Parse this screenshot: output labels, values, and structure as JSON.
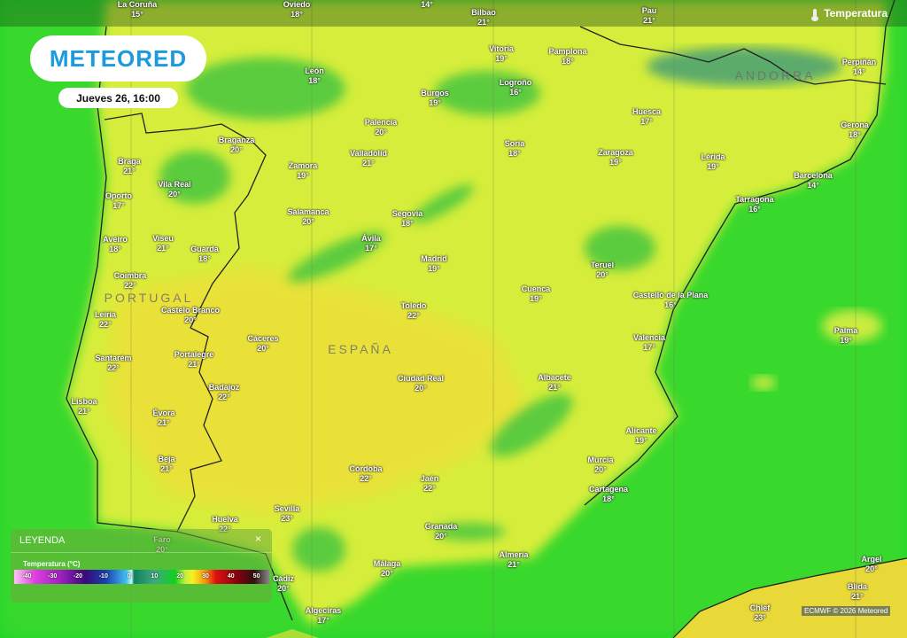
{
  "header": {
    "layer_label": "Temperatura",
    "layer_icon": "thermometer-icon"
  },
  "logo": {
    "text": "METEORED"
  },
  "date": "Jueves 26, 16:00",
  "countries": [
    "PORTUGAL",
    "ESPAÑA",
    "ANDORRA"
  ],
  "cities": [
    {
      "name": "La Coruña",
      "temp": "15°"
    },
    {
      "name": "Oviedo",
      "temp": "18°"
    },
    {
      "name": "",
      "temp": "14°"
    },
    {
      "name": "Bilbao",
      "temp": "21°"
    },
    {
      "name": "Pau",
      "temp": "21°"
    },
    {
      "name": "Vitoria",
      "temp": "19°"
    },
    {
      "name": "Pamplona",
      "temp": "18°"
    },
    {
      "name": "León",
      "temp": "18°"
    },
    {
      "name": "Burgos",
      "temp": "19°"
    },
    {
      "name": "Logroño",
      "temp": "16°"
    },
    {
      "name": "Huesca",
      "temp": "17°"
    },
    {
      "name": "Perpiñán",
      "temp": "14°"
    },
    {
      "name": "Gerona",
      "temp": "18°"
    },
    {
      "name": "Palencia",
      "temp": "20°"
    },
    {
      "name": "Braganza",
      "temp": "20°"
    },
    {
      "name": "Soria",
      "temp": "18°"
    },
    {
      "name": "Zaragoza",
      "temp": "19°"
    },
    {
      "name": "Lérida",
      "temp": "19°"
    },
    {
      "name": "Valladolid",
      "temp": "21°"
    },
    {
      "name": "Braga",
      "temp": "21°"
    },
    {
      "name": "Zamora",
      "temp": "19°"
    },
    {
      "name": "Barcelona",
      "temp": "14°"
    },
    {
      "name": "Vila Real",
      "temp": "20°"
    },
    {
      "name": "Oporto",
      "temp": "17°"
    },
    {
      "name": "Tarragona",
      "temp": "16°"
    },
    {
      "name": "Salamanca",
      "temp": "20°"
    },
    {
      "name": "Segovia",
      "temp": "18°"
    },
    {
      "name": "Aveiro",
      "temp": "18°"
    },
    {
      "name": "Viseu",
      "temp": "21°"
    },
    {
      "name": "Ávila",
      "temp": "17°"
    },
    {
      "name": "Guarda",
      "temp": "18°"
    },
    {
      "name": "Madrid",
      "temp": "19°"
    },
    {
      "name": "Teruel",
      "temp": "20°"
    },
    {
      "name": "Coimbra",
      "temp": "22°"
    },
    {
      "name": "Cuenca",
      "temp": "19°"
    },
    {
      "name": "Castelló de la Plana",
      "temp": "16°"
    },
    {
      "name": "Toledo",
      "temp": "22°"
    },
    {
      "name": "Castelo Branco",
      "temp": "20°"
    },
    {
      "name": "Leiria",
      "temp": "22°"
    },
    {
      "name": "Palma",
      "temp": "19°"
    },
    {
      "name": "Valencia",
      "temp": "17°"
    },
    {
      "name": "Cáceres",
      "temp": "20°"
    },
    {
      "name": "Portalegre",
      "temp": "21°"
    },
    {
      "name": "Santarém",
      "temp": "22°"
    },
    {
      "name": "Ciudad Real",
      "temp": "20°"
    },
    {
      "name": "Albacete",
      "temp": "21°"
    },
    {
      "name": "Badajoz",
      "temp": "22°"
    },
    {
      "name": "Lisboa",
      "temp": "21°"
    },
    {
      "name": "Évora",
      "temp": "21°"
    },
    {
      "name": "Alicante",
      "temp": "19°"
    },
    {
      "name": "Beja",
      "temp": "21°"
    },
    {
      "name": "Murcia",
      "temp": "20°"
    },
    {
      "name": "Córdoba",
      "temp": "22°"
    },
    {
      "name": "Jaén",
      "temp": "22°"
    },
    {
      "name": "Cartagena",
      "temp": "18°"
    },
    {
      "name": "Sevilla",
      "temp": "23°"
    },
    {
      "name": "Huelva",
      "temp": "22°"
    },
    {
      "name": "Granada",
      "temp": "20°"
    },
    {
      "name": "Faro",
      "temp": "20°"
    },
    {
      "name": "Almería",
      "temp": "21°"
    },
    {
      "name": "Málaga",
      "temp": "20°"
    },
    {
      "name": "Cádiz",
      "temp": "20°"
    },
    {
      "name": "Algeciras",
      "temp": "17°"
    },
    {
      "name": "Argel",
      "temp": "20°"
    },
    {
      "name": "Blida",
      "temp": "21°"
    },
    {
      "name": "Chlef",
      "temp": "23°"
    }
  ],
  "legend": {
    "title": "LEYENDA",
    "close": "×",
    "subtitle": "Temperatura (°C)",
    "ticks": [
      "-40",
      "-30",
      "-20",
      "-10",
      "0",
      "10",
      "20",
      "30",
      "40",
      "50"
    ],
    "colors": {
      "sea": "#22d42a",
      "land_warm": "#e8ec38",
      "land_cool": "#a8e840",
      "mountain": "#3a9a6a"
    }
  },
  "attribution": "ECMWF © 2026 Meteored"
}
